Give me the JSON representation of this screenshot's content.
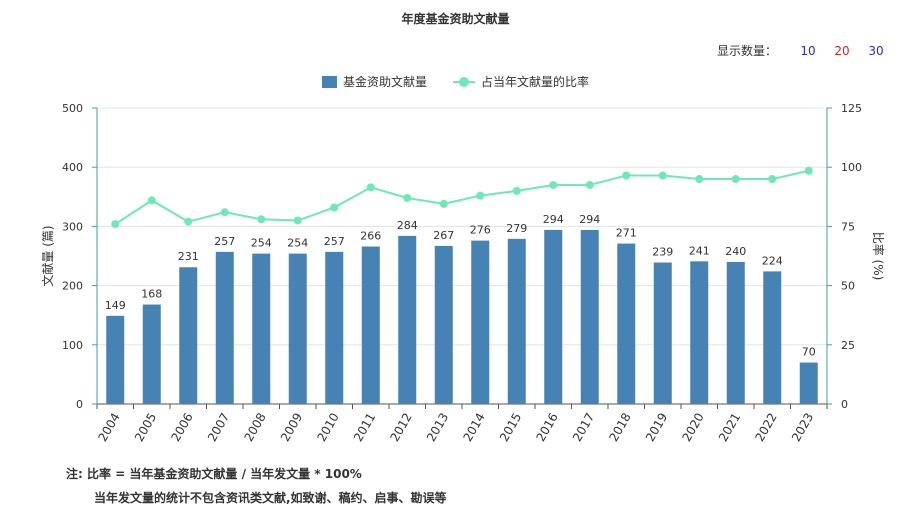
{
  "title": "年度基金资助文献量",
  "show_count": {
    "label": "显示数量：",
    "options": [
      {
        "value": "10",
        "color": "#2b2bd6"
      },
      {
        "value": "20",
        "color": "#e02020"
      },
      {
        "value": "30",
        "color": "#2b2bd6"
      }
    ]
  },
  "legend": [
    {
      "label": "基金资助文献量",
      "color": "#4682b4",
      "kind": "bar"
    },
    {
      "label": "占当年文献量的比率",
      "color": "#6ee8b4",
      "kind": "line"
    }
  ],
  "notes": {
    "line1": "注:  比率 = 当年基金资助文献量 / 当年发文量 * 100%",
    "line2": "当年发文量的统计不包含资讯类文献,如致谢、稿约、启事、勘误等"
  },
  "chart_data": {
    "type": "bar",
    "categories": [
      "2004",
      "2005",
      "2006",
      "2007",
      "2008",
      "2009",
      "2010",
      "2011",
      "2012",
      "2013",
      "2014",
      "2015",
      "2016",
      "2017",
      "2018",
      "2019",
      "2020",
      "2021",
      "2022",
      "2023"
    ],
    "series": [
      {
        "name": "基金资助文献量",
        "type": "bar",
        "axis": "left",
        "values": [
          149,
          168,
          231,
          257,
          254,
          254,
          257,
          266,
          284,
          267,
          276,
          279,
          294,
          294,
          271,
          239,
          241,
          240,
          224,
          70
        ]
      },
      {
        "name": "占当年文献量的比率",
        "type": "line",
        "axis": "right",
        "values": [
          76,
          86,
          77,
          81,
          78,
          77.5,
          83,
          91.5,
          87,
          84.5,
          88,
          90,
          92.5,
          92.5,
          96.5,
          96.5,
          95,
          95,
          95,
          98.5
        ]
      }
    ],
    "ylabel": "文献量 (篇)",
    "y2label": "比率 (%)",
    "ylim": [
      0,
      500
    ],
    "y2lim": [
      0,
      125
    ],
    "yticks": [
      0,
      100,
      200,
      300,
      400,
      500
    ],
    "y2ticks": [
      0,
      25,
      50,
      75,
      100,
      125
    ],
    "grid": true,
    "legend_position": "top-center",
    "show_bar_labels": true
  }
}
